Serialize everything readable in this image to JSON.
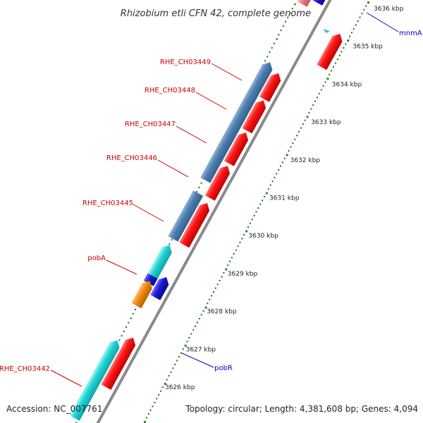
{
  "title": "Rhizobium etli CFN 42, complete genome",
  "footer": {
    "accession": "Accession: NC_007761",
    "summary": "Topology: circular; Length: 4,381,608 bp; Genes: 4,094"
  },
  "colors": {
    "backbone": "#888888",
    "tick_major": "#2a8a2a",
    "tick_minor": "#1f6b1f",
    "gene_red": "#ee1111",
    "gene_steelblue": "#4e7fb0",
    "gene_cyan": "#22d4d4",
    "gene_blue": "#1a1ad0",
    "gene_orange": "#f08c10",
    "gene_pink": "#ee8080",
    "label_red": "#cc0000",
    "label_blue": "#0000cc"
  },
  "ticks": [
    {
      "label": "3626 kbp",
      "kbp": 3626
    },
    {
      "label": "3627 kbp",
      "kbp": 3627
    },
    {
      "label": "3628 kbp",
      "kbp": 3628
    },
    {
      "label": "3629 kbp",
      "kbp": 3629
    },
    {
      "label": "3630 kbp",
      "kbp": 3630
    },
    {
      "label": "3631 kbp",
      "kbp": 3631
    },
    {
      "label": "3632 kbp",
      "kbp": 3632
    },
    {
      "label": "3633 kbp",
      "kbp": 3633
    },
    {
      "label": "3634 kbp",
      "kbp": 3634
    },
    {
      "label": "3635 kbp",
      "kbp": 3635
    },
    {
      "label": "3636 kbp",
      "kbp": 3636
    }
  ],
  "labels": [
    {
      "text": "RHE_CH03449",
      "color": "label_red"
    },
    {
      "text": "RHE_CH03448",
      "color": "label_red"
    },
    {
      "text": "RHE_CH03447",
      "color": "label_red"
    },
    {
      "text": "RHE_CH03446",
      "color": "label_red"
    },
    {
      "text": "RHE_CH03445",
      "color": "label_red"
    },
    {
      "text": "pobA",
      "color": "label_red"
    },
    {
      "text": "RHE_CH03442",
      "color": "label_red"
    },
    {
      "text": "mnmA",
      "color": "label_blue"
    },
    {
      "text": "pobR",
      "color": "label_blue"
    }
  ]
}
